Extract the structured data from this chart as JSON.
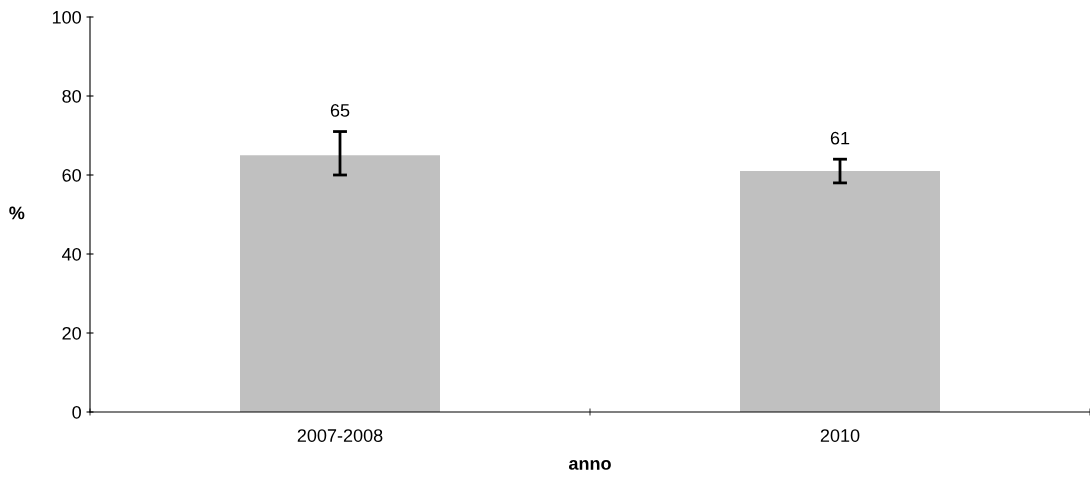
{
  "chart_data": {
    "type": "bar",
    "categories": [
      "2007-2008",
      "2010"
    ],
    "values": [
      65,
      61
    ],
    "errors": [
      [
        60,
        71
      ],
      [
        58,
        64
      ]
    ],
    "color": "#c0c0c0",
    "xlabel": "anno",
    "ylabel": "%",
    "ylim": [
      0,
      100
    ],
    "yticks": [
      0,
      20,
      40,
      60,
      80,
      100
    ],
    "data_labels": true,
    "grid": false
  }
}
